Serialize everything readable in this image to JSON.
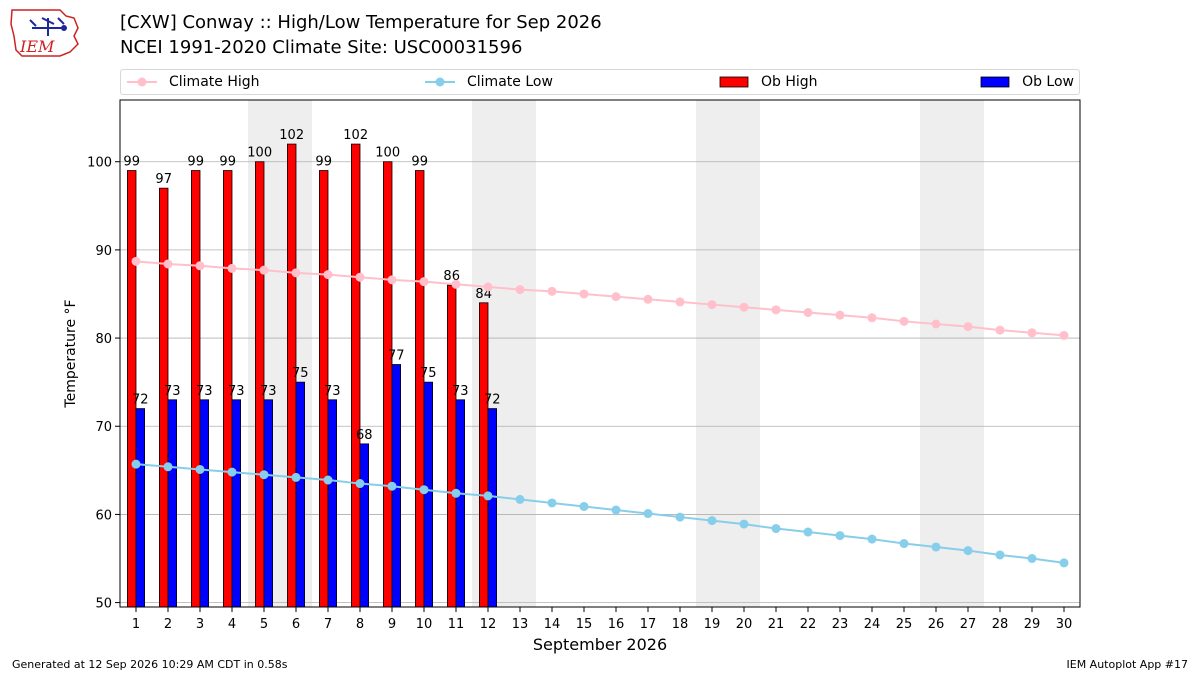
{
  "title_line1": "[CXW] Conway :: High/Low Temperature for Sep 2026",
  "title_line2": "NCEI 1991-2020 Climate Site: USC00031596",
  "logo_text": "IEM",
  "footer_left": "Generated at 12 Sep 2026 10:29 AM CDT in 0.58s",
  "footer_right": "IEM Autoplot App #17",
  "colors": {
    "climate_high": "#ffc0cb",
    "climate_low": "#87ceeb",
    "ob_high": "#ff0000",
    "ob_low": "#0000ff",
    "weekend_shade": "#eeeeee",
    "grid": "#b0b0b0"
  },
  "legend": [
    {
      "label": "Climate High",
      "kind": "line",
      "color": "#ffc0cb"
    },
    {
      "label": "Climate Low",
      "kind": "line",
      "color": "#87ceeb"
    },
    {
      "label": "Ob High",
      "kind": "bar",
      "color": "#ff0000"
    },
    {
      "label": "Ob Low",
      "kind": "bar",
      "color": "#0000ff"
    }
  ],
  "chart_data": {
    "type": "bar",
    "xlabel": "September 2026",
    "ylabel": "Temperature °F",
    "ylim": [
      49.5,
      107
    ],
    "xlim": [
      0.5,
      30.5
    ],
    "yticks": [
      50,
      60,
      70,
      80,
      90,
      100
    ],
    "grid": "horizontal",
    "legend_position": "top",
    "weekend_shaded_days": [
      5,
      6,
      12,
      13,
      19,
      20,
      26,
      27
    ],
    "days": [
      1,
      2,
      3,
      4,
      5,
      6,
      7,
      8,
      9,
      10,
      11,
      12,
      13,
      14,
      15,
      16,
      17,
      18,
      19,
      20,
      21,
      22,
      23,
      24,
      25,
      26,
      27,
      28,
      29,
      30
    ],
    "series": [
      {
        "name": "Ob High",
        "type": "bar",
        "days": [
          1,
          2,
          3,
          4,
          5,
          6,
          7,
          8,
          9,
          10,
          11,
          12
        ],
        "values": [
          99,
          97,
          99,
          99,
          100,
          102,
          99,
          102,
          100,
          99,
          86,
          84
        ]
      },
      {
        "name": "Ob Low",
        "type": "bar",
        "days": [
          1,
          2,
          3,
          4,
          5,
          6,
          7,
          8,
          9,
          10,
          11,
          12
        ],
        "values": [
          72,
          73,
          73,
          73,
          73,
          75,
          73,
          68,
          77,
          75,
          73,
          72
        ]
      },
      {
        "name": "Climate High",
        "type": "line",
        "days": [
          1,
          2,
          3,
          4,
          5,
          6,
          7,
          8,
          9,
          10,
          11,
          12,
          13,
          14,
          15,
          16,
          17,
          18,
          19,
          20,
          21,
          22,
          23,
          24,
          25,
          26,
          27,
          28,
          29,
          30
        ],
        "values": [
          88.7,
          88.4,
          88.2,
          87.9,
          87.7,
          87.4,
          87.2,
          86.9,
          86.6,
          86.4,
          86.1,
          85.8,
          85.5,
          85.3,
          85.0,
          84.7,
          84.4,
          84.1,
          83.8,
          83.5,
          83.2,
          82.9,
          82.6,
          82.3,
          81.9,
          81.6,
          81.3,
          80.9,
          80.6,
          80.3
        ]
      },
      {
        "name": "Climate Low",
        "type": "line",
        "days": [
          1,
          2,
          3,
          4,
          5,
          6,
          7,
          8,
          9,
          10,
          11,
          12,
          13,
          14,
          15,
          16,
          17,
          18,
          19,
          20,
          21,
          22,
          23,
          24,
          25,
          26,
          27,
          28,
          29,
          30
        ],
        "values": [
          65.7,
          65.4,
          65.1,
          64.8,
          64.5,
          64.2,
          63.9,
          63.5,
          63.2,
          62.8,
          62.4,
          62.1,
          61.7,
          61.3,
          60.9,
          60.5,
          60.1,
          59.7,
          59.3,
          58.9,
          58.4,
          58.0,
          57.6,
          57.2,
          56.7,
          56.3,
          55.9,
          55.4,
          55.0,
          54.5
        ]
      }
    ]
  }
}
